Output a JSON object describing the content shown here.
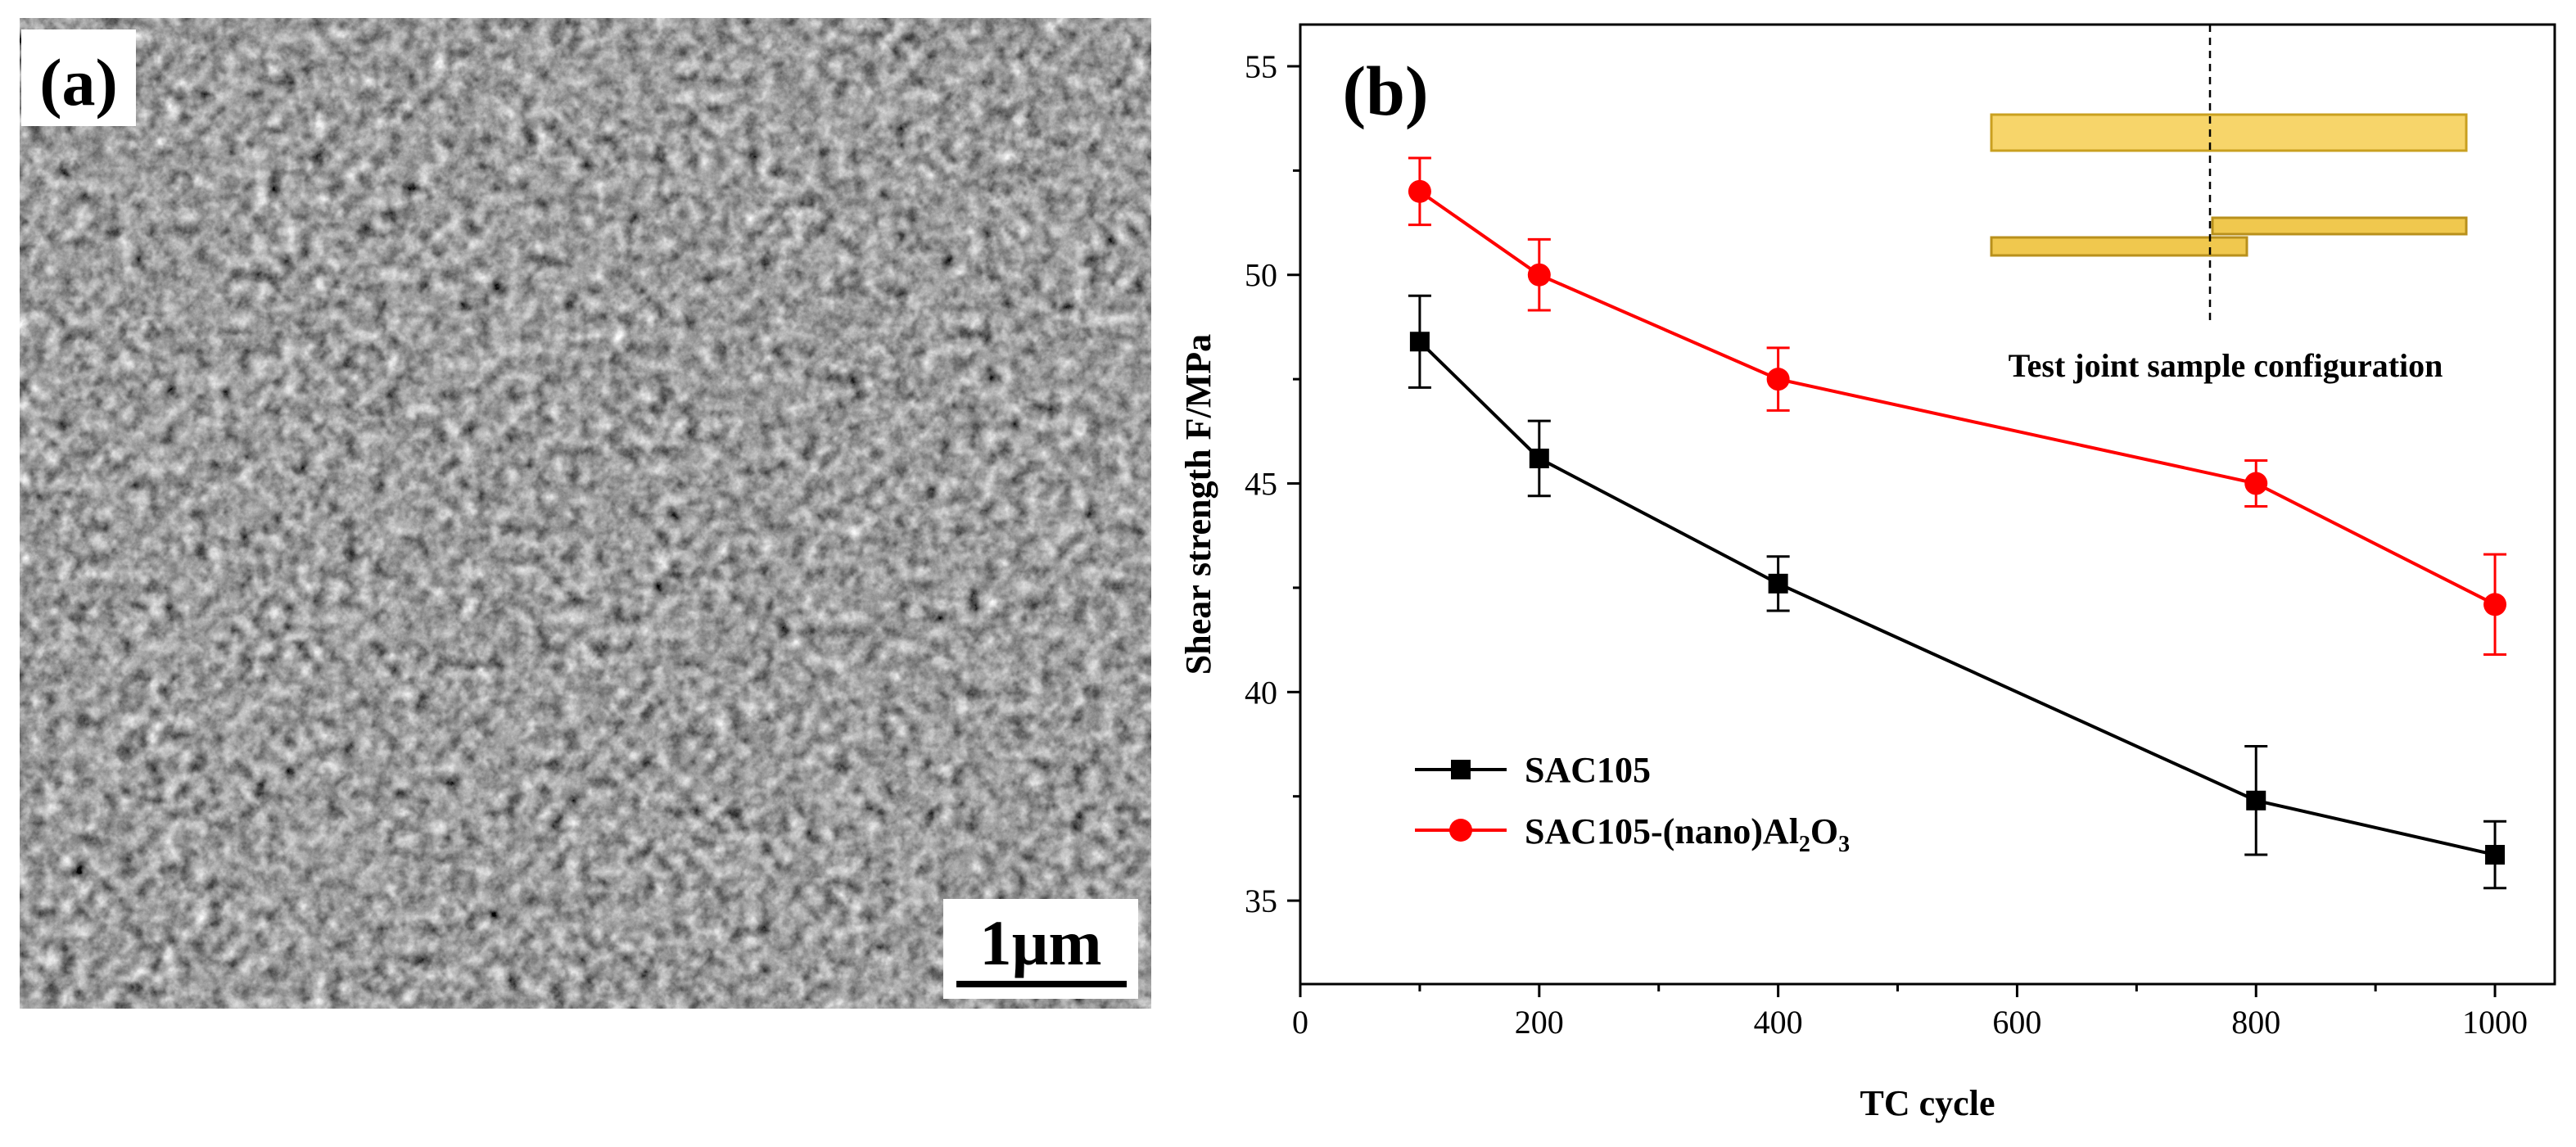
{
  "panel_a": {
    "label": "(a)",
    "scale_bar": "1µm"
  },
  "panel_b": {
    "label": "(b)",
    "inset": {
      "caption": "Test joint sample configuration"
    },
    "legend": [
      {
        "marker": "square",
        "color": "#000000",
        "text": "SAC105"
      },
      {
        "marker": "circle",
        "color": "#ff0000",
        "text": "SAC105-(nano)Al",
        "sub1": "2",
        "mid": "O",
        "sub2": "3"
      }
    ]
  },
  "chart_data": {
    "type": "line",
    "title": "",
    "xlabel": "TC cycle",
    "ylabel": "Shear strength F/MPa",
    "xlim": [
      0,
      1050
    ],
    "ylim": [
      33,
      56
    ],
    "xticks": [
      0,
      200,
      400,
      600,
      800,
      1000
    ],
    "yticks": [
      35,
      40,
      45,
      50,
      55
    ],
    "grid": false,
    "legend_position": "bottom-left",
    "series": [
      {
        "name": "SAC105",
        "color": "#000000",
        "marker": "square",
        "x": [
          100,
          200,
          400,
          800,
          1000
        ],
        "y": [
          48.4,
          45.6,
          42.6,
          37.4,
          36.1
        ],
        "err": [
          1.1,
          0.9,
          0.65,
          1.3,
          0.8
        ]
      },
      {
        "name": "SAC105-(nano)Al2O3",
        "color": "#ff0000",
        "marker": "circle",
        "x": [
          100,
          200,
          400,
          800,
          1000
        ],
        "y": [
          52.0,
          50.0,
          47.5,
          45.0,
          42.1
        ],
        "err": [
          0.8,
          0.85,
          0.75,
          0.55,
          1.2
        ]
      }
    ]
  }
}
